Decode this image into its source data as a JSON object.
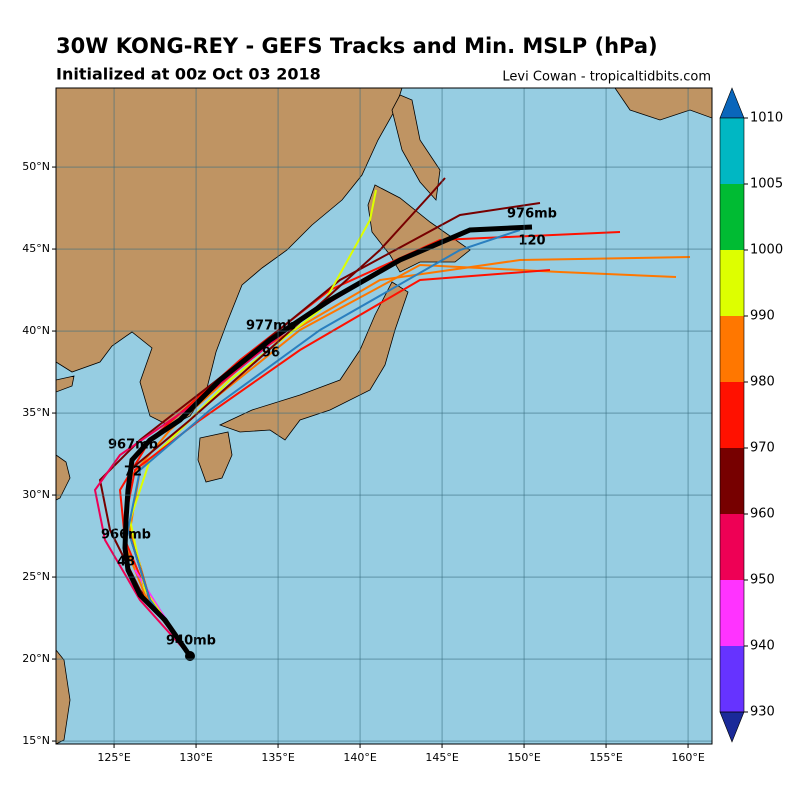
{
  "header": {
    "title": "30W KONG-REY - GEFS Tracks and Min. MSLP (hPa)",
    "subtitle": "Initialized at 00z Oct 03 2018",
    "credit": "Levi Cowan - tropicaltidbits.com"
  },
  "map": {
    "lon_ticks": [
      {
        "value": 125,
        "label": "125°E"
      },
      {
        "value": 130,
        "label": "130°E"
      },
      {
        "value": 135,
        "label": "135°E"
      },
      {
        "value": 140,
        "label": "140°E"
      },
      {
        "value": 145,
        "label": "145°E"
      },
      {
        "value": 150,
        "label": "150°E"
      },
      {
        "value": 155,
        "label": "155°E"
      },
      {
        "value": 160,
        "label": "160°E"
      }
    ],
    "lat_ticks": [
      {
        "value": 15,
        "label": "15°N"
      },
      {
        "value": 20,
        "label": "20°N"
      },
      {
        "value": 25,
        "label": "25°N"
      },
      {
        "value": 30,
        "label": "30°N"
      },
      {
        "value": 35,
        "label": "35°N"
      },
      {
        "value": 40,
        "label": "40°N"
      },
      {
        "value": 45,
        "label": "45°N"
      },
      {
        "value": 50,
        "label": "50°N"
      }
    ],
    "annotations": [
      "940mb",
      "966mb",
      "48",
      "967mb",
      "72",
      "977mb",
      "96",
      "976mb",
      "120"
    ]
  },
  "colorbar": {
    "ticks": [
      930,
      940,
      950,
      960,
      970,
      980,
      990,
      1000,
      1005,
      1010
    ],
    "colors": [
      "#6633ff",
      "#ff33ff",
      "#ee0055",
      "#770000",
      "#ff1100",
      "#ff7700",
      "#ddff00",
      "#00bb33",
      "#00b7c3"
    ],
    "under_color": "#1a2a99",
    "over_color": "#0a66bb"
  }
}
